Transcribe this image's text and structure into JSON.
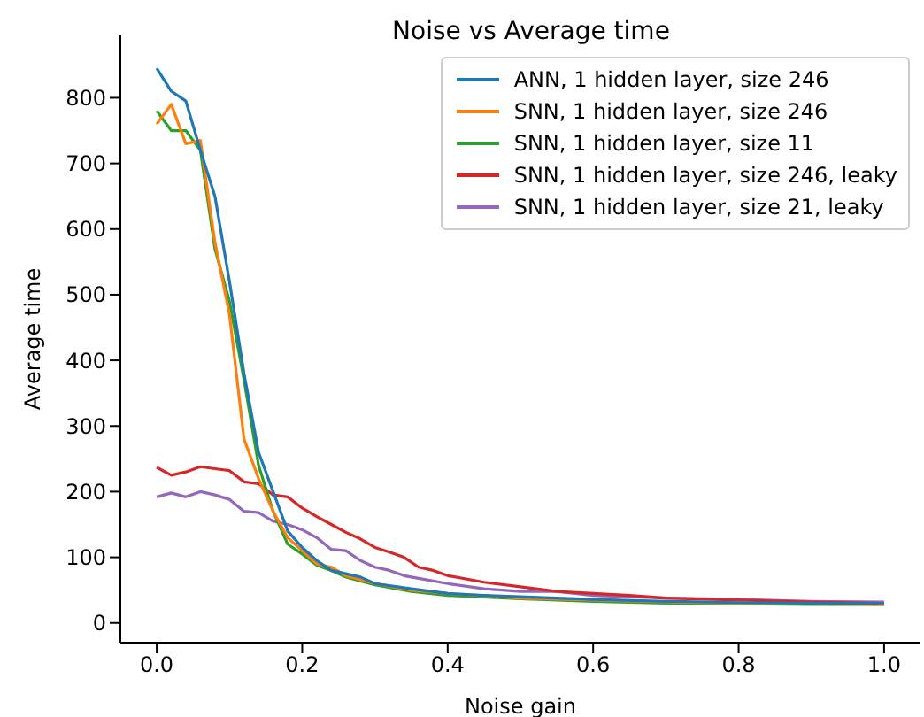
{
  "chart_data": {
    "type": "line",
    "title": "Noise vs Average time",
    "xlabel": "Noise gain",
    "ylabel": "Average time",
    "xlim": [
      -0.05,
      1.05
    ],
    "ylim": [
      -30,
      895
    ],
    "xticks": [
      {
        "value": 0,
        "label": "0.0"
      },
      0.2,
      0.4,
      0.6,
      0.8,
      {
        "value": 1,
        "label": "1.0"
      }
    ],
    "yticks": [
      0,
      100,
      200,
      300,
      400,
      500,
      600,
      700,
      800
    ],
    "legend": "top right",
    "marker": "none",
    "line_style": "solid",
    "series": [
      {
        "name": "ANN, 1 hidden layer, size 246",
        "color": "#1f77b4",
        "x": [
          0,
          0.02,
          0.04,
          0.06,
          0.08,
          0.1,
          0.12,
          0.14,
          0.16,
          0.18,
          0.2,
          0.22,
          0.24,
          0.26,
          0.28,
          0.3,
          0.35,
          0.4,
          0.45,
          0.5,
          0.6,
          0.7,
          0.8,
          0.9,
          1.0
        ],
        "values": [
          845,
          810,
          795,
          720,
          650,
          520,
          380,
          260,
          200,
          140,
          115,
          95,
          80,
          75,
          70,
          60,
          52,
          45,
          42,
          40,
          36,
          33,
          31,
          30,
          30
        ]
      },
      {
        "name": "SNN, 1 hidden layer, size 246",
        "color": "#ff7f0e",
        "x": [
          0,
          0.02,
          0.04,
          0.06,
          0.08,
          0.1,
          0.12,
          0.14,
          0.16,
          0.18,
          0.2,
          0.22,
          0.24,
          0.26,
          0.3,
          0.35,
          0.4,
          0.5,
          0.6,
          0.7,
          0.8,
          0.9,
          1.0
        ],
        "values": [
          760,
          790,
          730,
          735,
          580,
          470,
          280,
          220,
          170,
          130,
          110,
          90,
          85,
          72,
          60,
          50,
          45,
          38,
          35,
          32,
          30,
          30,
          28
        ]
      },
      {
        "name": "SNN, 1 hidden layer, size 11",
        "color": "#2ca02c",
        "x": [
          0,
          0.02,
          0.04,
          0.06,
          0.08,
          0.1,
          0.12,
          0.14,
          0.16,
          0.18,
          0.2,
          0.22,
          0.24,
          0.26,
          0.3,
          0.35,
          0.4,
          0.5,
          0.6,
          0.7,
          0.8,
          0.9,
          1.0
        ],
        "values": [
          780,
          750,
          750,
          720,
          570,
          490,
          370,
          240,
          170,
          120,
          105,
          88,
          80,
          70,
          58,
          48,
          42,
          37,
          33,
          30,
          29,
          28,
          28
        ]
      },
      {
        "name": "SNN, 1 hidden layer, size 246, leaky",
        "color": "#d62728",
        "x": [
          0,
          0.02,
          0.04,
          0.06,
          0.08,
          0.1,
          0.12,
          0.14,
          0.16,
          0.18,
          0.2,
          0.22,
          0.24,
          0.26,
          0.28,
          0.3,
          0.32,
          0.34,
          0.36,
          0.38,
          0.4,
          0.45,
          0.5,
          0.55,
          0.6,
          0.65,
          0.7,
          0.8,
          0.9,
          1.0
        ],
        "values": [
          237,
          225,
          230,
          238,
          235,
          232,
          215,
          212,
          195,
          192,
          175,
          162,
          150,
          138,
          128,
          115,
          108,
          100,
          85,
          80,
          72,
          62,
          55,
          48,
          45,
          42,
          38,
          35,
          32,
          30
        ]
      },
      {
        "name": "SNN, 1 hidden layer, size 21, leaky",
        "color": "#9467bd",
        "x": [
          0,
          0.02,
          0.04,
          0.06,
          0.08,
          0.1,
          0.12,
          0.14,
          0.16,
          0.18,
          0.2,
          0.22,
          0.24,
          0.26,
          0.28,
          0.3,
          0.32,
          0.34,
          0.36,
          0.4,
          0.45,
          0.5,
          0.55,
          0.6,
          0.7,
          0.8,
          0.9,
          1.0
        ],
        "values": [
          192,
          198,
          192,
          200,
          195,
          188,
          170,
          168,
          155,
          150,
          142,
          130,
          112,
          110,
          95,
          85,
          80,
          72,
          68,
          60,
          52,
          48,
          48,
          42,
          38,
          36,
          33,
          32
        ]
      }
    ]
  }
}
